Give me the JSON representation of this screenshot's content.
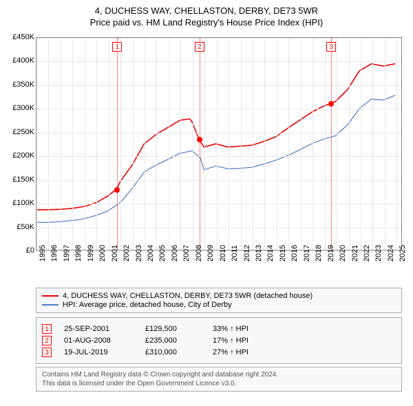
{
  "title": {
    "line1": "4, DUCHESS WAY, CHELLASTON, DERBY, DE73 5WR",
    "line2": "Price paid vs. HM Land Registry's House Price Index (HPI)"
  },
  "chart": {
    "type": "line",
    "background_color": "#ffffff",
    "grid_color": "#e8e8e8",
    "border_color": "#888888",
    "ylim": [
      0,
      450000
    ],
    "ytick_step": 50000,
    "yticks": [
      "£0",
      "£50K",
      "£100K",
      "£150K",
      "£200K",
      "£250K",
      "£300K",
      "£350K",
      "£400K",
      "£450K"
    ],
    "xlim": [
      1995,
      2025.5
    ],
    "xticks": [
      1995,
      1996,
      1997,
      1998,
      1999,
      2000,
      2001,
      2002,
      2003,
      2004,
      2005,
      2006,
      2007,
      2008,
      2009,
      2010,
      2011,
      2012,
      2013,
      2014,
      2015,
      2016,
      2017,
      2018,
      2019,
      2020,
      2021,
      2022,
      2023,
      2024,
      2025
    ],
    "label_fontsize": 11,
    "series": [
      {
        "name": "property",
        "color": "#e60000",
        "width": 1.6,
        "points": [
          [
            1995,
            85000
          ],
          [
            1996,
            85000
          ],
          [
            1997,
            86000
          ],
          [
            1998,
            88000
          ],
          [
            1999,
            92000
          ],
          [
            2000,
            100000
          ],
          [
            2001,
            115000
          ],
          [
            2001.73,
            129500
          ],
          [
            2002,
            145000
          ],
          [
            2003,
            180000
          ],
          [
            2004,
            225000
          ],
          [
            2005,
            245000
          ],
          [
            2006,
            260000
          ],
          [
            2007,
            275000
          ],
          [
            2007.8,
            278000
          ],
          [
            2008,
            272000
          ],
          [
            2008.58,
            235000
          ],
          [
            2009,
            218000
          ],
          [
            2010,
            225000
          ],
          [
            2011,
            218000
          ],
          [
            2012,
            220000
          ],
          [
            2013,
            222000
          ],
          [
            2014,
            230000
          ],
          [
            2015,
            240000
          ],
          [
            2016,
            258000
          ],
          [
            2017,
            275000
          ],
          [
            2018,
            292000
          ],
          [
            2019,
            305000
          ],
          [
            2019.55,
            310000
          ],
          [
            2020,
            315000
          ],
          [
            2021,
            340000
          ],
          [
            2022,
            380000
          ],
          [
            2023,
            395000
          ],
          [
            2024,
            390000
          ],
          [
            2025,
            395000
          ]
        ]
      },
      {
        "name": "hpi",
        "color": "#4a7bc8",
        "width": 1.2,
        "points": [
          [
            1995,
            58000
          ],
          [
            1996,
            58000
          ],
          [
            1997,
            60000
          ],
          [
            1998,
            62000
          ],
          [
            1999,
            66000
          ],
          [
            2000,
            73000
          ],
          [
            2001,
            83000
          ],
          [
            2002,
            100000
          ],
          [
            2003,
            130000
          ],
          [
            2004,
            165000
          ],
          [
            2005,
            180000
          ],
          [
            2006,
            192000
          ],
          [
            2007,
            205000
          ],
          [
            2008,
            210000
          ],
          [
            2008.7,
            195000
          ],
          [
            2009,
            170000
          ],
          [
            2010,
            178000
          ],
          [
            2011,
            172000
          ],
          [
            2012,
            173000
          ],
          [
            2013,
            175000
          ],
          [
            2014,
            182000
          ],
          [
            2015,
            190000
          ],
          [
            2016,
            200000
          ],
          [
            2017,
            212000
          ],
          [
            2018,
            225000
          ],
          [
            2019,
            235000
          ],
          [
            2020,
            242000
          ],
          [
            2021,
            265000
          ],
          [
            2022,
            300000
          ],
          [
            2023,
            320000
          ],
          [
            2024,
            318000
          ],
          [
            2025,
            328000
          ]
        ]
      }
    ],
    "markers": [
      {
        "n": "1",
        "year": 2001.73,
        "value": 129500
      },
      {
        "n": "2",
        "year": 2008.58,
        "value": 235000
      },
      {
        "n": "3",
        "year": 2019.55,
        "value": 310000
      }
    ],
    "marker_color": "#ff0000"
  },
  "legend": {
    "items": [
      {
        "color": "#e60000",
        "label": "4, DUCHESS WAY, CHELLASTON, DERBY, DE73 5WR (detached house)"
      },
      {
        "color": "#4a7bc8",
        "label": "HPI: Average price, detached house, City of Derby"
      }
    ]
  },
  "sales": [
    {
      "n": "1",
      "date": "25-SEP-2001",
      "price": "£129,500",
      "delta": "33% ↑ HPI"
    },
    {
      "n": "2",
      "date": "01-AUG-2008",
      "price": "£235,000",
      "delta": "17% ↑ HPI"
    },
    {
      "n": "3",
      "date": "19-JUL-2019",
      "price": "£310,000",
      "delta": "27% ↑ HPI"
    }
  ],
  "attribution": {
    "line1": "Contains HM Land Registry data © Crown copyright and database right 2024.",
    "line2": "This data is licensed under the Open Government Licence v3.0."
  }
}
